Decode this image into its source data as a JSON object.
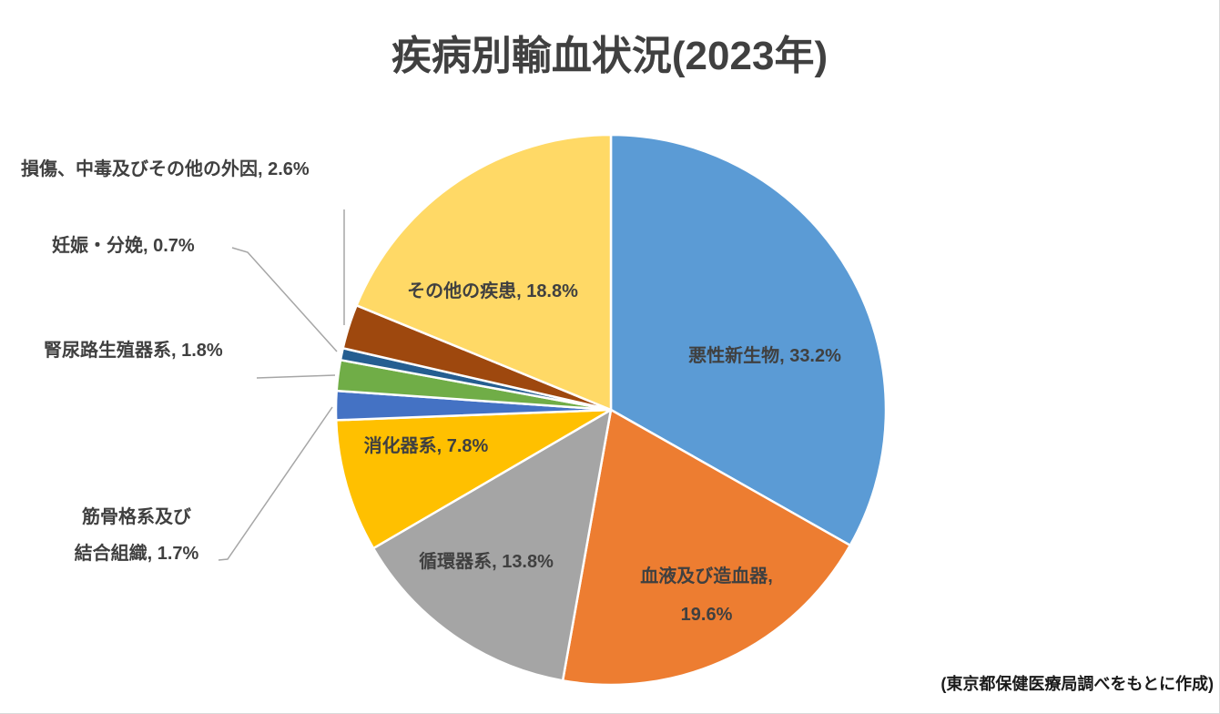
{
  "page": {
    "title": "疾病別輸血状況(2023年)",
    "source_note": "(東京都保健医療局調べをもとに作成)"
  },
  "colors": {
    "title_text": "#404040",
    "label_text": "#404040",
    "source_text": "#1a1a1a",
    "slice_border": "#ffffff",
    "leader_line": "#a6a6a6",
    "background": "#ffffff"
  },
  "chart_data": {
    "type": "pie",
    "title": "疾病別輸血状況(2023年)",
    "unit": "percent",
    "total": 100.0,
    "start_angle_deg": 0,
    "direction": "clockwise",
    "legend_position": "none",
    "source": "(東京都保健医療局調べをもとに作成)",
    "slices": [
      {
        "name": "malignant-neoplasm",
        "label": "悪性新生物",
        "value": 33.2,
        "color": "#5B9BD5",
        "label_placement": "inside",
        "display": [
          "悪性新生物, 33.2%"
        ]
      },
      {
        "name": "blood-hematopoietic",
        "label": "血液及び造血器",
        "value": 19.6,
        "color": "#ED7D31",
        "label_placement": "inside",
        "display": [
          "血液及び造血器,",
          "19.6%"
        ]
      },
      {
        "name": "circulatory",
        "label": "循環器系",
        "value": 13.8,
        "color": "#A5A5A5",
        "label_placement": "inside",
        "display": [
          "循環器系, 13.8%"
        ]
      },
      {
        "name": "digestive",
        "label": "消化器系",
        "value": 7.8,
        "color": "#FFC000",
        "label_placement": "inside",
        "display": [
          "消化器系, 7.8%"
        ]
      },
      {
        "name": "musculoskeletal-connective",
        "label": "筋骨格系及び結合組織",
        "value": 1.7,
        "color": "#4472C4",
        "label_placement": "outside",
        "display": [
          "筋骨格系及び",
          "結合組織, 1.7%"
        ]
      },
      {
        "name": "genitourinary",
        "label": "腎尿路生殖器系",
        "value": 1.8,
        "color": "#70AD47",
        "label_placement": "outside",
        "display": [
          "腎尿路生殖器系, 1.8%"
        ]
      },
      {
        "name": "pregnancy-childbirth",
        "label": "妊娠・分娩",
        "value": 0.7,
        "color": "#255E91",
        "label_placement": "outside",
        "display": [
          "妊娠・分娩, 0.7%"
        ]
      },
      {
        "name": "injury-poisoning-external",
        "label": "損傷、中毒及びその他の外因",
        "value": 2.6,
        "color": "#9E480E",
        "label_placement": "outside",
        "display": [
          "損傷、中毒及びその他の外因, 2.6%"
        ]
      },
      {
        "name": "other-diseases",
        "label": "その他の疾患",
        "value": 18.8,
        "color": "#FFD966",
        "label_placement": "inside",
        "display": [
          "その他の疾患, 18.8%"
        ]
      }
    ]
  }
}
